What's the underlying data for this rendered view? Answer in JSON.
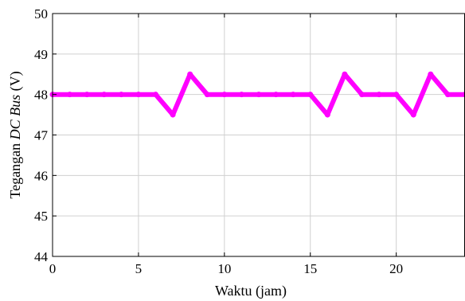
{
  "chart_data": {
    "type": "line",
    "xlabel": "Waktu (jam)",
    "ylabel": {
      "prefix": "Tegangan ",
      "italic": "DC Bus",
      "suffix": " (V)"
    },
    "xlim": [
      0,
      24
    ],
    "ylim": [
      44,
      50
    ],
    "x_ticks": [
      0,
      5,
      10,
      15,
      20
    ],
    "y_ticks": [
      44,
      45,
      46,
      47,
      48,
      49,
      50
    ],
    "grid": true,
    "legend": "none",
    "series": [
      {
        "color": "#ff00ff",
        "x": [
          0,
          1,
          2,
          3,
          4,
          5,
          6,
          7,
          8,
          9,
          10,
          11,
          12,
          13,
          14,
          15,
          16,
          17,
          18,
          19,
          20,
          21,
          22,
          23,
          24
        ],
        "y": [
          48.0,
          48.0,
          48.0,
          48.0,
          48.0,
          48.0,
          48.0,
          47.5,
          48.5,
          48.0,
          48.0,
          48.0,
          48.0,
          48.0,
          48.0,
          48.0,
          47.5,
          48.5,
          48.0,
          48.0,
          48.0,
          47.5,
          48.5,
          48.0,
          48.0
        ]
      }
    ]
  }
}
